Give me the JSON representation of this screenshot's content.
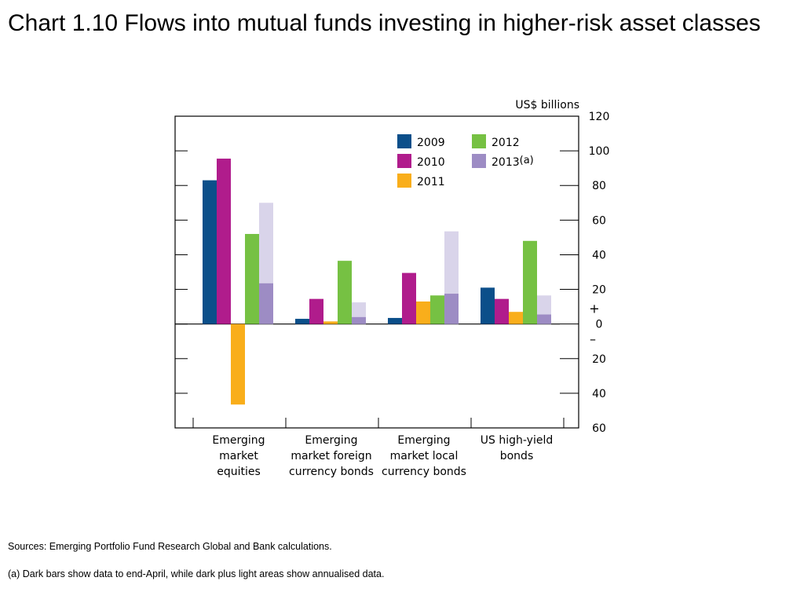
{
  "page": {
    "title": "Chart 1.10  Flows into mutual funds investing in higher-risk asset classes",
    "sources": "Sources:  Emerging Portfolio Fund Research Global and Bank calculations.",
    "footnote": "(a)  Dark bars show data to end-April, while dark plus light areas show annualised data."
  },
  "chart_data": {
    "type": "bar",
    "title": "",
    "ylabel": "US$ billions",
    "ylim": [
      -60,
      120
    ],
    "yticks": [
      {
        "value": 120,
        "label": "120"
      },
      {
        "value": 100,
        "label": "100"
      },
      {
        "value": 80,
        "label": "80"
      },
      {
        "value": 60,
        "label": "60"
      },
      {
        "value": 40,
        "label": "40"
      },
      {
        "value": 20,
        "label": "20"
      },
      {
        "value": 0,
        "label": "0"
      },
      {
        "value": -20,
        "label": "20"
      },
      {
        "value": -40,
        "label": "40"
      },
      {
        "value": -60,
        "label": "60"
      }
    ],
    "sign_labels": {
      "plus": "+",
      "minus": "–"
    },
    "categories": [
      [
        "Emerging",
        "market",
        "equities"
      ],
      [
        "Emerging",
        "market foreign",
        "currency bonds"
      ],
      [
        "Emerging",
        "market local",
        "currency bonds"
      ],
      [
        "US high-yield",
        "bonds"
      ]
    ],
    "series": [
      {
        "name": "2009",
        "color": "#0b4f8a",
        "values": [
          83,
          3,
          3.5,
          21
        ]
      },
      {
        "name": "2010",
        "color": "#b01c8c",
        "values": [
          95.5,
          14.5,
          29.5,
          14.5
        ]
      },
      {
        "name": "2011",
        "color": "#f9ae1b",
        "values": [
          -46.5,
          1.5,
          13,
          7
        ]
      },
      {
        "name": "2012",
        "color": "#76c143",
        "values": [
          52,
          36.5,
          16.5,
          48
        ]
      },
      {
        "name": "2013",
        "color": "#9d8cc4",
        "light_color": "#d9d4ea",
        "suffix": "(a)",
        "values": [
          23.5,
          4,
          17.5,
          5.5
        ],
        "annualised": [
          70,
          12.5,
          53.5,
          16.5
        ]
      }
    ],
    "legend_placement": "top"
  },
  "colors": {
    "axis": "#000000",
    "text": "#000000"
  }
}
